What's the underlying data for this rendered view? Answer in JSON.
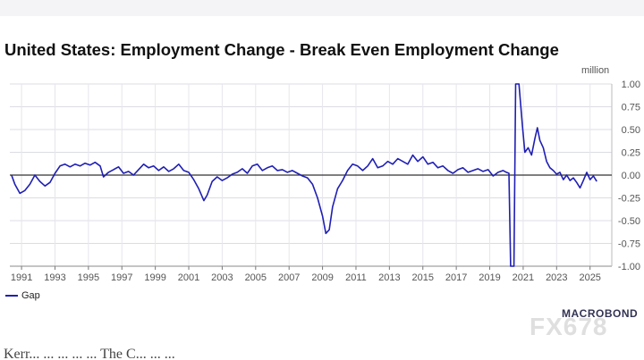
{
  "page": {
    "watermark": "FX678",
    "bottom_text_fragment": "Kerr... ... ... ... ... The C... ... ..."
  },
  "chart_data": {
    "type": "line",
    "title": "United States: Employment Change - Break Even Employment Change",
    "unit_label": "million",
    "xlabel": "",
    "ylabel": "",
    "xlim": [
      1990.3,
      2026.3
    ],
    "ylim": [
      -1.0,
      1.0
    ],
    "x_ticks": [
      1991,
      1993,
      1995,
      1997,
      1999,
      2001,
      2003,
      2005,
      2007,
      2009,
      2011,
      2013,
      2015,
      2017,
      2019,
      2021,
      2023,
      2025
    ],
    "x_tick_labels": [
      "1991",
      "1993",
      "1995",
      "1997",
      "1999",
      "2001",
      "2003",
      "2005",
      "2007",
      "2009",
      "2011",
      "2013",
      "2015",
      "2017",
      "2019",
      "2021",
      "2023",
      "2025"
    ],
    "y_ticks": [
      1.0,
      0.75,
      0.5,
      0.25,
      0.0,
      -0.25,
      -0.5,
      -0.75,
      -1.0
    ],
    "y_tick_labels": [
      "1.00",
      "0.75",
      "0.50",
      "0.25",
      "0.00",
      "-0.25",
      "-0.50",
      "-0.75",
      "-1.00"
    ],
    "grid": true,
    "zero_line": true,
    "legend_position": "bottom-left",
    "source_logo": "MACROBOND",
    "series": [
      {
        "name": "Gap",
        "color": "#1f1fb4",
        "points": [
          [
            1990.4,
            0.0
          ],
          [
            1990.6,
            -0.1
          ],
          [
            1990.9,
            -0.2
          ],
          [
            1991.2,
            -0.17
          ],
          [
            1991.5,
            -0.1
          ],
          [
            1991.8,
            0.0
          ],
          [
            1992.1,
            -0.07
          ],
          [
            1992.4,
            -0.12
          ],
          [
            1992.7,
            -0.08
          ],
          [
            1993.0,
            0.02
          ],
          [
            1993.3,
            0.1
          ],
          [
            1993.6,
            0.12
          ],
          [
            1993.9,
            0.09
          ],
          [
            1994.2,
            0.12
          ],
          [
            1994.5,
            0.1
          ],
          [
            1994.8,
            0.13
          ],
          [
            1995.1,
            0.11
          ],
          [
            1995.4,
            0.14
          ],
          [
            1995.7,
            0.1
          ],
          [
            1995.9,
            -0.02
          ],
          [
            1996.2,
            0.03
          ],
          [
            1996.5,
            0.06
          ],
          [
            1996.8,
            0.09
          ],
          [
            1997.1,
            0.02
          ],
          [
            1997.4,
            0.04
          ],
          [
            1997.7,
            0.0
          ],
          [
            1998.0,
            0.06
          ],
          [
            1998.3,
            0.12
          ],
          [
            1998.6,
            0.08
          ],
          [
            1998.9,
            0.1
          ],
          [
            1999.2,
            0.05
          ],
          [
            1999.5,
            0.09
          ],
          [
            1999.8,
            0.04
          ],
          [
            2000.1,
            0.07
          ],
          [
            2000.4,
            0.12
          ],
          [
            2000.7,
            0.05
          ],
          [
            2001.0,
            0.03
          ],
          [
            2001.3,
            -0.05
          ],
          [
            2001.6,
            -0.15
          ],
          [
            2001.9,
            -0.28
          ],
          [
            2002.1,
            -0.22
          ],
          [
            2002.4,
            -0.07
          ],
          [
            2002.7,
            -0.02
          ],
          [
            2003.0,
            -0.06
          ],
          [
            2003.3,
            -0.03
          ],
          [
            2003.6,
            0.01
          ],
          [
            2003.9,
            0.03
          ],
          [
            2004.2,
            0.07
          ],
          [
            2004.5,
            0.02
          ],
          [
            2004.8,
            0.1
          ],
          [
            2005.1,
            0.12
          ],
          [
            2005.4,
            0.05
          ],
          [
            2005.7,
            0.08
          ],
          [
            2006.0,
            0.1
          ],
          [
            2006.3,
            0.05
          ],
          [
            2006.6,
            0.06
          ],
          [
            2006.9,
            0.03
          ],
          [
            2007.2,
            0.05
          ],
          [
            2007.5,
            0.02
          ],
          [
            2007.8,
            -0.01
          ],
          [
            2008.1,
            -0.03
          ],
          [
            2008.4,
            -0.1
          ],
          [
            2008.7,
            -0.25
          ],
          [
            2009.0,
            -0.45
          ],
          [
            2009.2,
            -0.64
          ],
          [
            2009.4,
            -0.6
          ],
          [
            2009.6,
            -0.35
          ],
          [
            2009.9,
            -0.15
          ],
          [
            2010.2,
            -0.06
          ],
          [
            2010.5,
            0.05
          ],
          [
            2010.8,
            0.12
          ],
          [
            2011.1,
            0.1
          ],
          [
            2011.4,
            0.05
          ],
          [
            2011.7,
            0.1
          ],
          [
            2012.0,
            0.18
          ],
          [
            2012.3,
            0.08
          ],
          [
            2012.6,
            0.1
          ],
          [
            2012.9,
            0.15
          ],
          [
            2013.2,
            0.12
          ],
          [
            2013.5,
            0.18
          ],
          [
            2013.8,
            0.15
          ],
          [
            2014.1,
            0.12
          ],
          [
            2014.4,
            0.22
          ],
          [
            2014.7,
            0.15
          ],
          [
            2015.0,
            0.2
          ],
          [
            2015.3,
            0.12
          ],
          [
            2015.6,
            0.14
          ],
          [
            2015.9,
            0.08
          ],
          [
            2016.2,
            0.1
          ],
          [
            2016.5,
            0.05
          ],
          [
            2016.8,
            0.02
          ],
          [
            2017.1,
            0.06
          ],
          [
            2017.4,
            0.08
          ],
          [
            2017.7,
            0.03
          ],
          [
            2018.0,
            0.05
          ],
          [
            2018.3,
            0.07
          ],
          [
            2018.6,
            0.04
          ],
          [
            2018.9,
            0.06
          ],
          [
            2019.2,
            -0.01
          ],
          [
            2019.5,
            0.03
          ],
          [
            2019.8,
            0.05
          ],
          [
            2020.0,
            0.03
          ],
          [
            2020.15,
            0.02
          ],
          [
            2020.25,
            -1.0
          ],
          [
            2020.45,
            -1.0
          ],
          [
            2020.55,
            1.0
          ],
          [
            2020.75,
            1.0
          ],
          [
            2020.95,
            0.55
          ],
          [
            2021.1,
            0.25
          ],
          [
            2021.3,
            0.3
          ],
          [
            2021.5,
            0.22
          ],
          [
            2021.7,
            0.4
          ],
          [
            2021.85,
            0.52
          ],
          [
            2022.0,
            0.38
          ],
          [
            2022.2,
            0.3
          ],
          [
            2022.4,
            0.15
          ],
          [
            2022.6,
            0.08
          ],
          [
            2022.8,
            0.05
          ],
          [
            2023.0,
            0.01
          ],
          [
            2023.2,
            0.03
          ],
          [
            2023.4,
            -0.05
          ],
          [
            2023.6,
            0.0
          ],
          [
            2023.8,
            -0.06
          ],
          [
            2024.0,
            -0.03
          ],
          [
            2024.2,
            -0.08
          ],
          [
            2024.4,
            -0.14
          ],
          [
            2024.6,
            -0.06
          ],
          [
            2024.8,
            0.03
          ],
          [
            2025.0,
            -0.05
          ],
          [
            2025.2,
            -0.01
          ],
          [
            2025.4,
            -0.07
          ]
        ]
      }
    ]
  }
}
